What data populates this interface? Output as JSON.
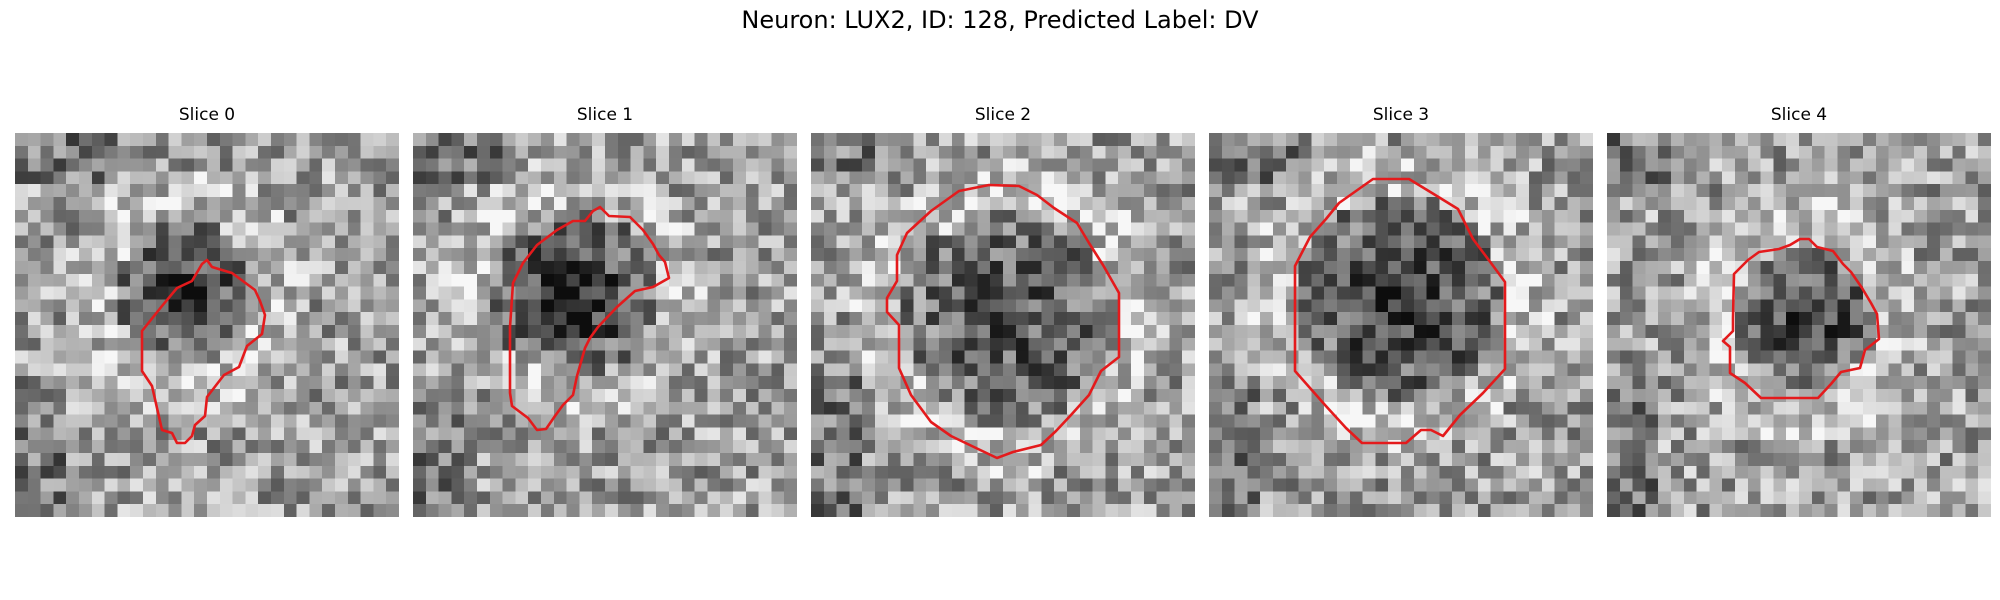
{
  "figure": {
    "title": "Neuron: LUX2, ID: 128, Predicted Label: DV"
  },
  "panels": [
    {
      "title": "Slice 0"
    },
    {
      "title": "Slice 1"
    },
    {
      "title": "Slice 2"
    },
    {
      "title": "Slice 3"
    },
    {
      "title": "Slice 4"
    }
  ],
  "colors": {
    "contour": "#e41a1c",
    "background": "#ffffff",
    "colormap": "gray"
  }
}
